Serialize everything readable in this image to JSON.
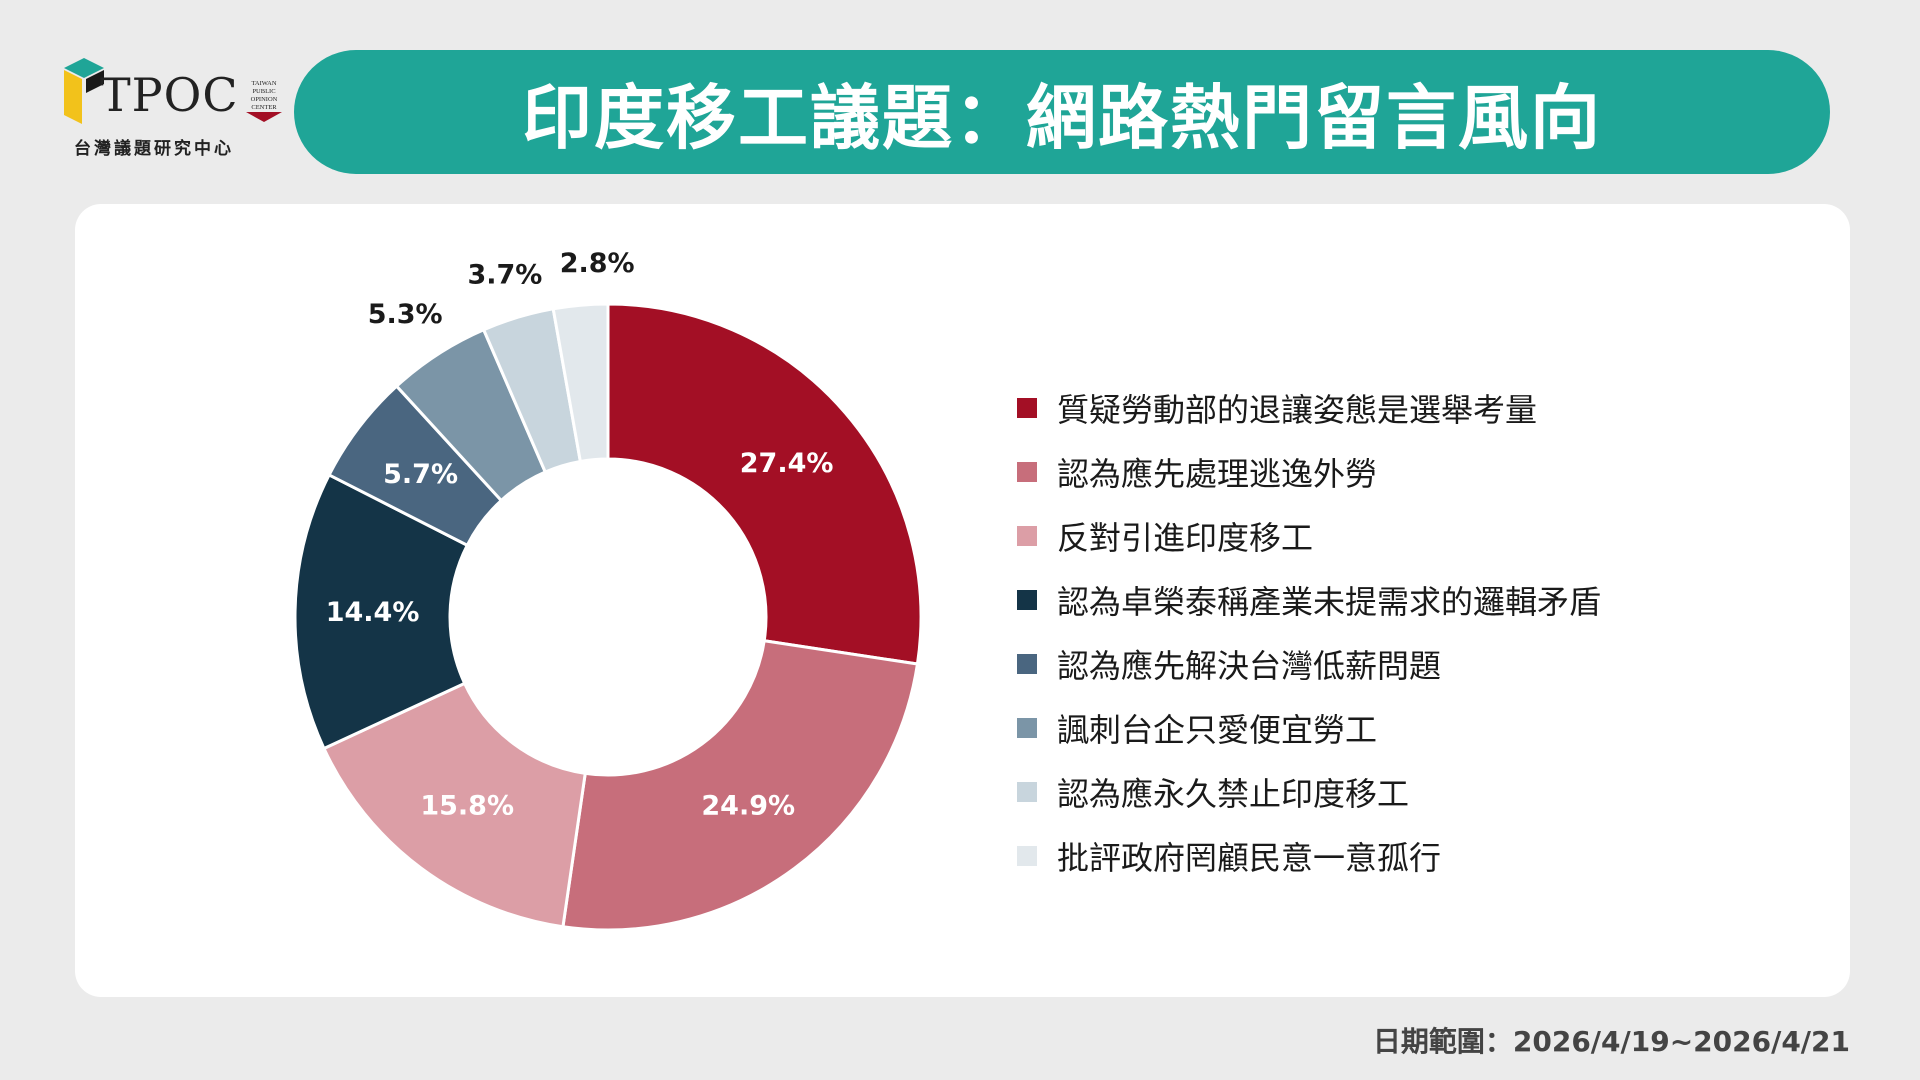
{
  "logo": {
    "brand": "TPOC",
    "badge_lines": [
      "TAIWAN",
      "PUBLIC",
      "OPINION",
      "CENTER"
    ],
    "subtitle": "台灣議題研究中心"
  },
  "title": "印度移工議題：網路熱門留言風向",
  "date_range": "日期範圍：2026/4/19~2026/4/21",
  "colors": {
    "banner": "#1fa597",
    "background": "#ebebeb",
    "card": "#ffffff"
  },
  "chart_data": {
    "type": "pie",
    "style": "donut",
    "legend_position": "right",
    "slices": [
      {
        "label": "質疑勞動部的退讓姿態是選舉考量",
        "value": 27.4,
        "value_label": "27.4%",
        "color": "#a30f25",
        "label_color": "#ffffff",
        "label_inside": true
      },
      {
        "label": "認為應先處理逃逸外勞",
        "value": 24.9,
        "value_label": "24.9%",
        "color": "#c76e7b",
        "label_color": "#ffffff",
        "label_inside": true
      },
      {
        "label": "反對引進印度移工",
        "value": 15.8,
        "value_label": "15.8%",
        "color": "#dc9ea6",
        "label_color": "#ffffff",
        "label_inside": true
      },
      {
        "label": "認為卓榮泰稱產業未提需求的邏輯矛盾",
        "value": 14.4,
        "value_label": "14.4%",
        "color": "#143447",
        "label_color": "#ffffff",
        "label_inside": true
      },
      {
        "label": "認為應先解決台灣低薪問題",
        "value": 5.7,
        "value_label": "5.7%",
        "color": "#4a6680",
        "label_color": "#ffffff",
        "label_inside": true
      },
      {
        "label": "諷刺台企只愛便宜勞工",
        "value": 5.3,
        "value_label": "5.3%",
        "color": "#7b95a7",
        "label_color": "#1a1a1a",
        "label_inside": false
      },
      {
        "label": "認為應永久禁止印度移工",
        "value": 3.7,
        "value_label": "3.7%",
        "color": "#c8d5dd",
        "label_color": "#1a1a1a",
        "label_inside": false
      },
      {
        "label": "批評政府罔顧民意一意孤行",
        "value": 2.8,
        "value_label": "2.8%",
        "color": "#e2e8ec",
        "label_color": "#1a1a1a",
        "label_inside": false
      }
    ]
  }
}
